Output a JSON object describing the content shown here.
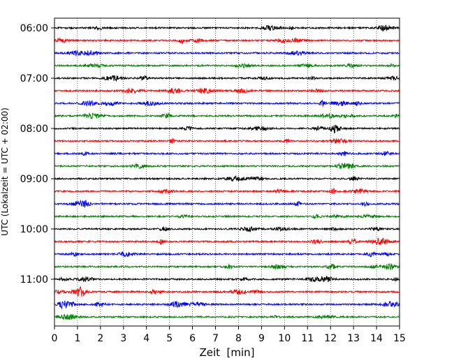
{
  "chart_data": {
    "type": "line",
    "title": "",
    "xlabel": "Zeit  [min]",
    "ylabel": "UTC (Lokalzeit = UTC + 02:00)",
    "xlim": [
      0,
      15
    ],
    "x_ticks": [
      "0",
      "1",
      "2",
      "3",
      "4",
      "5",
      "6",
      "7",
      "8",
      "9",
      "10",
      "11",
      "12",
      "13",
      "14",
      "15"
    ],
    "y_ticks": [
      "06:00",
      "07:00",
      "08:00",
      "09:00",
      "10:00",
      "11:00"
    ],
    "grid": "vertical dotted",
    "trace_colors": [
      "#000000",
      "#ff0000",
      "#0000ff",
      "#008000"
    ],
    "series": [
      {
        "start": "06:00",
        "color": "#000000"
      },
      {
        "start": "06:15",
        "color": "#ff0000"
      },
      {
        "start": "06:30",
        "color": "#0000ff"
      },
      {
        "start": "06:45",
        "color": "#008000"
      },
      {
        "start": "07:00",
        "color": "#000000"
      },
      {
        "start": "07:15",
        "color": "#ff0000"
      },
      {
        "start": "07:30",
        "color": "#0000ff"
      },
      {
        "start": "07:45",
        "color": "#008000"
      },
      {
        "start": "08:00",
        "color": "#000000"
      },
      {
        "start": "08:15",
        "color": "#ff0000"
      },
      {
        "start": "08:30",
        "color": "#0000ff"
      },
      {
        "start": "08:45",
        "color": "#008000"
      },
      {
        "start": "09:00",
        "color": "#000000"
      },
      {
        "start": "09:15",
        "color": "#ff0000"
      },
      {
        "start": "09:30",
        "color": "#0000ff"
      },
      {
        "start": "09:45",
        "color": "#008000"
      },
      {
        "start": "10:00",
        "color": "#000000"
      },
      {
        "start": "10:15",
        "color": "#ff0000"
      },
      {
        "start": "10:30",
        "color": "#0000ff"
      },
      {
        "start": "10:45",
        "color": "#008000"
      },
      {
        "start": "11:00",
        "color": "#000000"
      },
      {
        "start": "11:15",
        "color": "#ff0000"
      },
      {
        "start": "11:30",
        "color": "#0000ff"
      },
      {
        "start": "11:45",
        "color": "#008000"
      }
    ]
  }
}
